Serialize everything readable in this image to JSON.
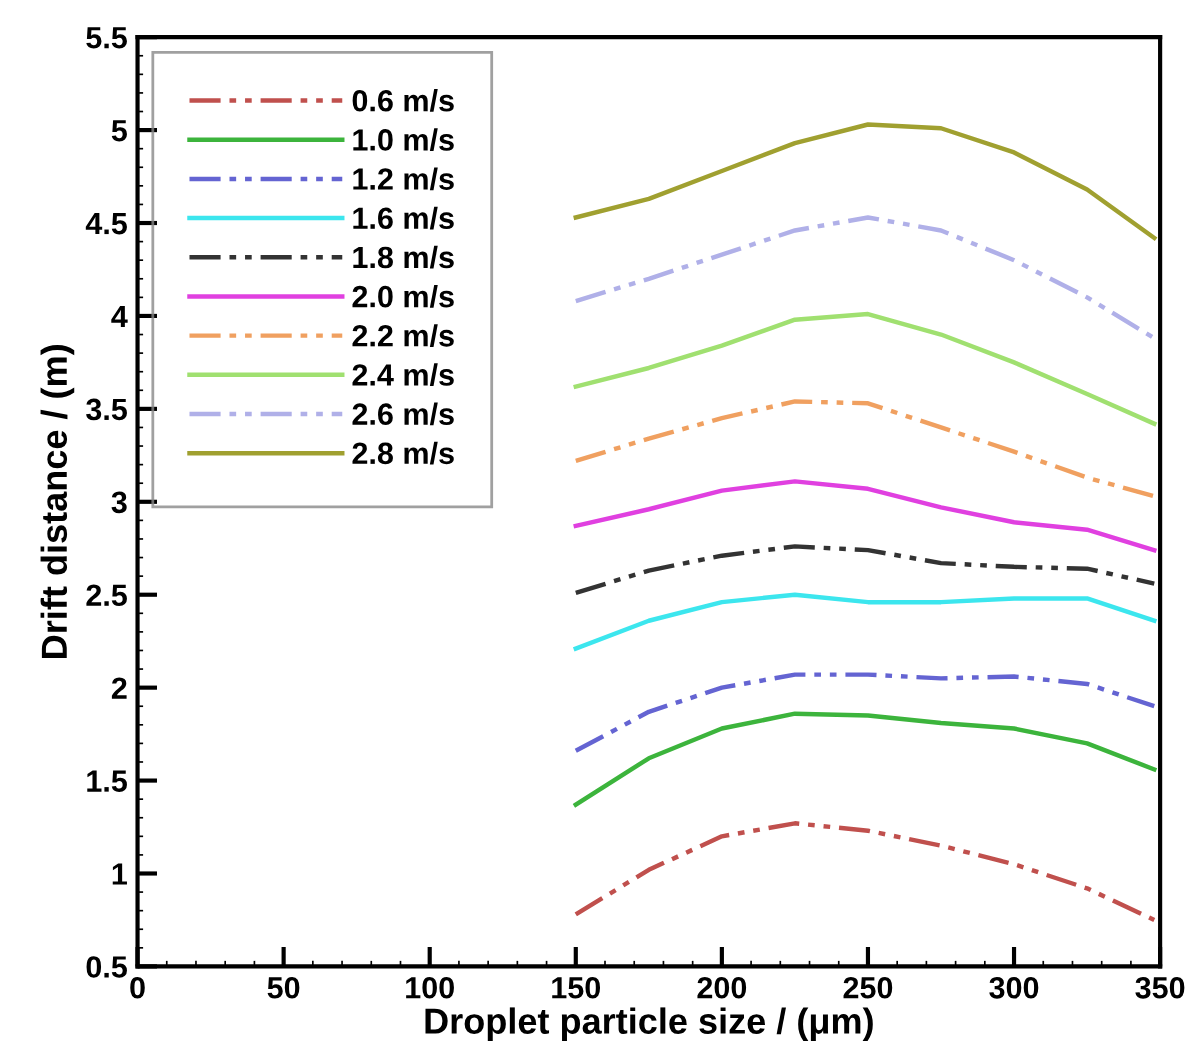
{
  "chart_data": {
    "type": "line",
    "xlabel": "Droplet particle size / (μm)",
    "ylabel": "Drift distance / (m)",
    "x": [
      150,
      175,
      200,
      225,
      250,
      275,
      300,
      325,
      348
    ],
    "xlim": [
      0,
      350
    ],
    "xticks": [
      0,
      50,
      100,
      150,
      200,
      250,
      300,
      350
    ],
    "ylim": [
      0.5,
      5.5
    ],
    "yticks": [
      0.5,
      1,
      1.5,
      2,
      2.5,
      3,
      3.5,
      4,
      4.5,
      5,
      5.5
    ],
    "grid": false,
    "legend": "top left",
    "marker": "none",
    "series": [
      {
        "name": "0.6 m/s",
        "color": "#c0504d",
        "line_style": "dashdot",
        "values": [
          0.78,
          1.02,
          1.2,
          1.27,
          1.23,
          1.15,
          1.05,
          0.92,
          0.75
        ]
      },
      {
        "name": "1.0 m/s",
        "color": "#3cb43c",
        "line_style": "solid",
        "values": [
          1.37,
          1.62,
          1.78,
          1.86,
          1.85,
          1.81,
          1.78,
          1.7,
          1.56
        ]
      },
      {
        "name": "1.2 m/s",
        "color": "#6464d2",
        "line_style": "dashdot",
        "values": [
          1.66,
          1.87,
          2.0,
          2.07,
          2.07,
          2.05,
          2.06,
          2.02,
          1.9
        ]
      },
      {
        "name": "1.6 m/s",
        "color": "#3ce6ee",
        "line_style": "solid",
        "values": [
          2.21,
          2.36,
          2.46,
          2.5,
          2.46,
          2.46,
          2.48,
          2.48,
          2.36
        ]
      },
      {
        "name": "1.8 m/s",
        "color": "#333333",
        "line_style": "dashdot",
        "values": [
          2.51,
          2.63,
          2.71,
          2.76,
          2.74,
          2.67,
          2.65,
          2.64,
          2.56
        ]
      },
      {
        "name": "2.0 m/s",
        "color": "#e040e0",
        "line_style": "solid",
        "values": [
          2.87,
          2.96,
          3.06,
          3.11,
          3.07,
          2.97,
          2.89,
          2.85,
          2.74
        ]
      },
      {
        "name": "2.2 m/s",
        "color": "#f0a060",
        "line_style": "dashdot",
        "values": [
          3.22,
          3.34,
          3.45,
          3.54,
          3.53,
          3.4,
          3.27,
          3.13,
          3.03
        ]
      },
      {
        "name": "2.4 m/s",
        "color": "#a0e070",
        "line_style": "solid",
        "values": [
          3.62,
          3.72,
          3.84,
          3.98,
          4.01,
          3.9,
          3.75,
          3.58,
          3.42
        ]
      },
      {
        "name": "2.6 m/s",
        "color": "#b0b0e8",
        "line_style": "dashdot",
        "values": [
          4.08,
          4.2,
          4.33,
          4.46,
          4.53,
          4.46,
          4.3,
          4.1,
          3.88
        ]
      },
      {
        "name": "2.8 m/s",
        "color": "#a0a030",
        "line_style": "solid",
        "values": [
          4.53,
          4.63,
          4.78,
          4.93,
          5.03,
          5.01,
          4.88,
          4.68,
          4.42
        ]
      }
    ]
  }
}
